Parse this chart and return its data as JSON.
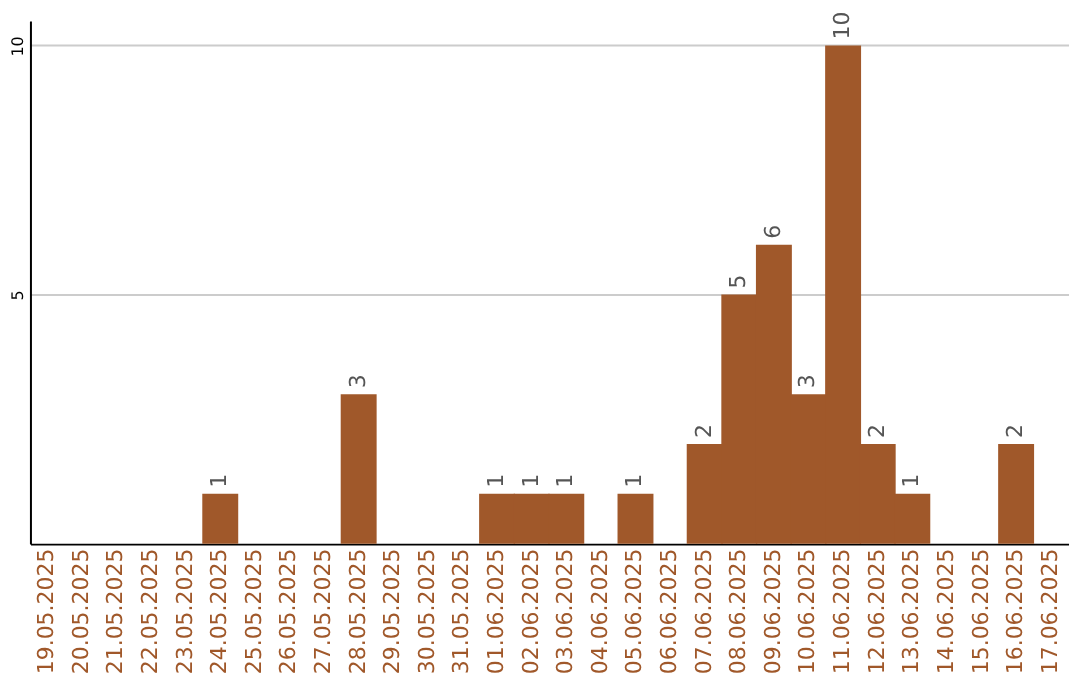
{
  "chart_data": {
    "type": "bar",
    "categories": [
      "19.05.2025",
      "20.05.2025",
      "21.05.2025",
      "22.05.2025",
      "23.05.2025",
      "24.05.2025",
      "25.05.2025",
      "26.05.2025",
      "27.05.2025",
      "28.05.2025",
      "29.05.2025",
      "30.05.2025",
      "31.05.2025",
      "01.06.2025",
      "02.06.2025",
      "03.06.2025",
      "04.06.2025",
      "05.06.2025",
      "06.06.2025",
      "07.06.2025",
      "08.06.2025",
      "09.06.2025",
      "10.06.2025",
      "11.06.2025",
      "12.06.2025",
      "13.06.2025",
      "14.06.2025",
      "15.06.2025",
      "16.06.2025",
      "17.06.2025"
    ],
    "values": [
      0,
      0,
      0,
      0,
      0,
      1,
      0,
      0,
      0,
      3,
      0,
      0,
      0,
      1,
      1,
      1,
      0,
      1,
      0,
      2,
      5,
      6,
      3,
      10,
      2,
      1,
      0,
      0,
      2,
      0
    ],
    "value_labels": [
      null,
      null,
      null,
      null,
      null,
      "1",
      null,
      null,
      null,
      "3",
      null,
      null,
      null,
      "1",
      "1",
      "1",
      null,
      "1",
      null,
      "2",
      "5",
      "6",
      "3",
      "10",
      "2",
      "1",
      null,
      null,
      "2",
      null
    ],
    "color": "#a0582a",
    "ylim": [
      0,
      10.5
    ],
    "yticks": [
      5,
      10
    ],
    "grid": "y"
  }
}
